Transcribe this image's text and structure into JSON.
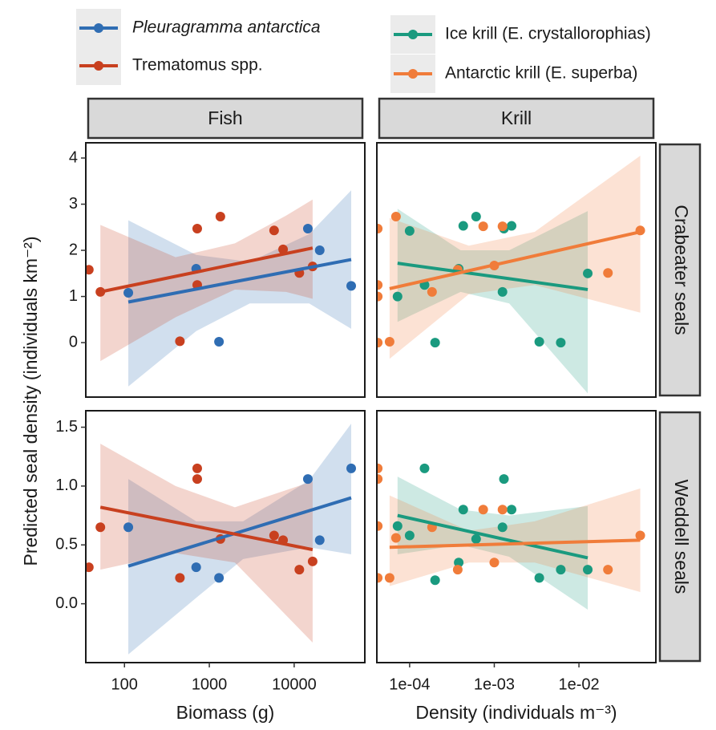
{
  "y_label": "Predicted seal density (individuals km⁻²)",
  "facet_columns": [
    "Fish",
    "Krill"
  ],
  "facet_rows": [
    "Crabeater seals",
    "Weddell seals"
  ],
  "chart_data": [
    {
      "type": "scatter",
      "xscale": "log",
      "xlim": [
        35,
        68000
      ],
      "ylim": [
        -1.18,
        4.33
      ],
      "yticks": [
        0,
        1,
        2,
        3,
        4
      ],
      "series": [
        {
          "name": "Pleuragramma antarctica",
          "color": "#2f6db3",
          "x": [
            111,
            700,
            1300,
            14500,
            20000,
            47000
          ],
          "values": [
            1.08,
            1.6,
            0.02,
            2.47,
            2.0,
            1.23
          ],
          "fit": {
            "x": [
              111,
              47000
            ],
            "values": [
              0.88,
              1.8
            ]
          },
          "band": {
            "x": [
              111,
              700,
              3000,
              15000,
              47000
            ],
            "lower": [
              -0.95,
              0.25,
              0.85,
              0.85,
              0.3
            ],
            "upper": [
              2.65,
              1.9,
              1.75,
              2.35,
              3.3
            ]
          }
        },
        {
          "name": "Trematomus spp.",
          "color": "#c8401f",
          "x": [
            38,
            52,
            450,
            720,
            720,
            1350,
            5800,
            7400,
            11500,
            16500
          ],
          "values": [
            1.58,
            1.1,
            0.03,
            2.47,
            1.25,
            2.73,
            2.43,
            2.02,
            1.51,
            1.65
          ],
          "fit": {
            "x": [
              52,
              16500
            ],
            "values": [
              1.1,
              2.05
            ]
          },
          "band": {
            "x": [
              52,
              400,
              2000,
              8000,
              16500
            ],
            "lower": [
              -0.4,
              0.55,
              1.15,
              1.1,
              0.95
            ],
            "upper": [
              2.55,
              1.85,
              2.15,
              2.75,
              3.1
            ]
          }
        }
      ]
    },
    {
      "type": "scatter",
      "xscale": "log",
      "xlim": [
        4.1e-05,
        0.081
      ],
      "ylim": [
        -1.18,
        4.33
      ],
      "series": [
        {
          "name": "Ice krill (E. crystallorophias)",
          "color": "#1a9a7f",
          "x": [
            7.2e-05,
            0.0001,
            0.00015,
            0.0002,
            0.00038,
            0.00043,
            0.00061,
            0.00125,
            0.0013,
            0.0016,
            0.0034,
            0.0061,
            0.0127
          ],
          "values": [
            1.0,
            2.42,
            1.25,
            0.0,
            1.6,
            2.53,
            2.73,
            1.1,
            2.47,
            2.53,
            0.02,
            0.0,
            1.5
          ],
          "fit": {
            "x": [
              7.2e-05,
              0.0127
            ],
            "values": [
              1.72,
              1.15
            ]
          },
          "band": {
            "x": [
              7.2e-05,
              0.0004,
              0.0015,
              0.0127
            ],
            "lower": [
              0.45,
              1.1,
              0.85,
              -1.1
            ],
            "upper": [
              2.9,
              2.0,
              2.0,
              2.85
            ]
          }
        },
        {
          "name": "Antarctic krill (E. superba)",
          "color": "#f07c3a",
          "x": [
            4.2e-05,
            4.2e-05,
            4.2e-05,
            4.2e-05,
            5.8e-05,
            6.9e-05,
            0.000184,
            0.00037,
            0.00074,
            0.001,
            0.00125,
            0.022,
            0.053
          ],
          "values": [
            2.47,
            1.25,
            1.0,
            0.0,
            0.02,
            2.73,
            1.1,
            1.58,
            2.52,
            1.67,
            2.52,
            1.51,
            2.43
          ],
          "fit": {
            "x": [
              5.8e-05,
              0.053
            ],
            "values": [
              1.17,
              2.4
            ]
          },
          "band": {
            "x": [
              5.8e-05,
              0.0005,
              0.003,
              0.053
            ],
            "lower": [
              -0.35,
              1.05,
              1.25,
              0.65
            ],
            "upper": [
              2.7,
              2.1,
              2.4,
              4.05
            ]
          }
        }
      ]
    },
    {
      "type": "scatter",
      "xscale": "log",
      "xlim": [
        35,
        68000
      ],
      "ylim": [
        -0.5,
        1.64
      ],
      "xticks": [
        100,
        1000,
        10000
      ],
      "xlabel": "Biomass (g)",
      "yticks": [
        {
          "value": 0,
          "label": "0.0"
        },
        {
          "value": 0.5,
          "label": "0.5"
        },
        {
          "value": 1,
          "label": "1.0"
        },
        {
          "value": 1.5,
          "label": "1.5"
        }
      ],
      "series": [
        {
          "color": "#2f6db3",
          "x": [
            111,
            700,
            1300,
            14500,
            20000,
            47000
          ],
          "values": [
            0.65,
            0.31,
            0.22,
            1.06,
            0.54,
            1.15
          ],
          "fit": {
            "x": [
              111,
              47000
            ],
            "values": [
              0.32,
              0.9
            ]
          },
          "band": {
            "x": [
              111,
              700,
              2500,
              15000,
              47000
            ],
            "lower": [
              -0.43,
              0.05,
              0.38,
              0.48,
              0.42
            ],
            "upper": [
              1.06,
              0.7,
              0.7,
              1.05,
              1.53
            ]
          }
        },
        {
          "color": "#c8401f",
          "x": [
            38,
            52,
            450,
            720,
            720,
            1350,
            5800,
            7400,
            11500,
            16500
          ],
          "values": [
            0.31,
            0.65,
            0.22,
            1.15,
            1.06,
            0.55,
            0.58,
            0.54,
            0.29,
            0.36
          ],
          "fit": {
            "x": [
              52,
              16500
            ],
            "values": [
              0.82,
              0.46
            ]
          },
          "band": {
            "x": [
              52,
              400,
              2000,
              16500
            ],
            "lower": [
              0.29,
              0.43,
              0.35,
              -0.33
            ],
            "upper": [
              1.36,
              1.0,
              0.82,
              1.04
            ]
          }
        }
      ]
    },
    {
      "type": "scatter",
      "xscale": "log",
      "xlim": [
        4.1e-05,
        0.081
      ],
      "ylim": [
        -0.5,
        1.64
      ],
      "xlabel": "Density (individuals m⁻³)",
      "xticks": [
        {
          "value": 0.0001,
          "label": "1e-04"
        },
        {
          "value": 0.001,
          "label": "1e-03"
        },
        {
          "value": 0.01,
          "label": "1e-02"
        }
      ],
      "series": [
        {
          "color": "#1a9a7f",
          "x": [
            7.2e-05,
            0.0001,
            0.00015,
            0.0002,
            0.00038,
            0.00043,
            0.00061,
            0.00125,
            0.0013,
            0.0016,
            0.0034,
            0.0061,
            0.0127
          ],
          "values": [
            0.66,
            0.58,
            1.15,
            0.2,
            0.35,
            0.8,
            0.55,
            0.65,
            1.06,
            0.8,
            0.22,
            0.29,
            0.29
          ],
          "fit": {
            "x": [
              7.2e-05,
              0.0127
            ],
            "values": [
              0.75,
              0.39
            ]
          },
          "band": {
            "x": [
              7.2e-05,
              0.0004,
              0.0015,
              0.0127
            ],
            "lower": [
              0.42,
              0.5,
              0.4,
              -0.05
            ],
            "upper": [
              1.08,
              0.8,
              0.75,
              0.83
            ]
          }
        },
        {
          "color": "#f07c3a",
          "x": [
            4.2e-05,
            4.2e-05,
            4.2e-05,
            4.2e-05,
            5.8e-05,
            6.9e-05,
            0.000184,
            0.00037,
            0.00074,
            0.001,
            0.00125,
            0.022,
            0.053
          ],
          "values": [
            1.15,
            1.06,
            0.66,
            0.22,
            0.22,
            0.56,
            0.65,
            0.29,
            0.8,
            0.35,
            0.8,
            0.29,
            0.58
          ],
          "fit": {
            "x": [
              5.8e-05,
              0.053
            ],
            "values": [
              0.48,
              0.54
            ]
          },
          "band": {
            "x": [
              5.8e-05,
              0.0005,
              0.003,
              0.053
            ],
            "lower": [
              0.15,
              0.35,
              0.35,
              0.1
            ],
            "upper": [
              0.92,
              0.62,
              0.7,
              0.98
            ]
          }
        }
      ]
    }
  ]
}
